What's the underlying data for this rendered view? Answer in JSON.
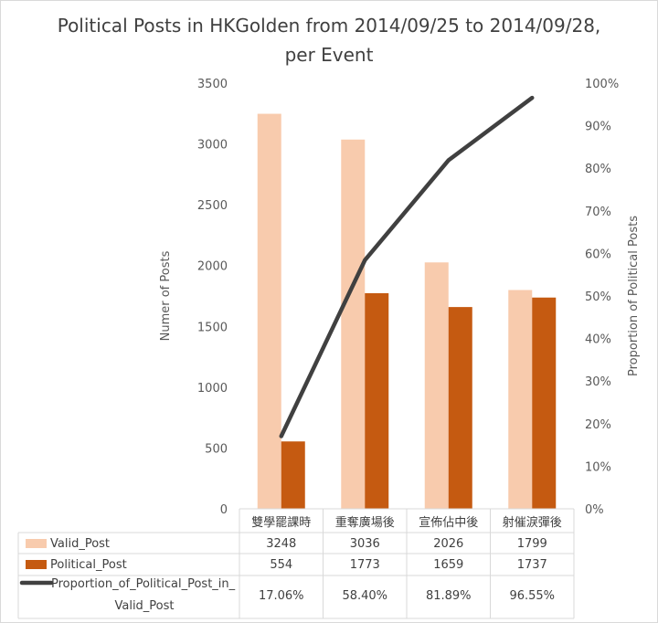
{
  "chart_data": {
    "type": "bar",
    "title_line1": "Political Posts in HKGolden from 2014/09/25 to 2014/09/28,",
    "title_line2": "per Event",
    "ylabel_left": "Numer of Posts",
    "ylabel_right": "Proportion  of Political Posts",
    "categories": [
      "雙學罷課時",
      "重奪廣場後",
      "宣佈佔中後",
      "射催淚彈後"
    ],
    "ylim_left": [
      0,
      3500
    ],
    "yticks_left": [
      "0",
      "500",
      "1000",
      "1500",
      "2000",
      "2500",
      "3000",
      "3500"
    ],
    "ylim_right": [
      0,
      1
    ],
    "yticks_right": [
      "0%",
      "10%",
      "20%",
      "30%",
      "40%",
      "50%",
      "60%",
      "70%",
      "80%",
      "90%",
      "100%"
    ],
    "series": [
      {
        "name": "Valid_Post",
        "kind": "bar",
        "axis": "left",
        "color": "#f8cbad",
        "values": [
          3248,
          3036,
          2026,
          1799
        ],
        "table_values": [
          "3248",
          "3036",
          "2026",
          "1799"
        ]
      },
      {
        "name": "Political_Post",
        "kind": "bar",
        "axis": "left",
        "color": "#c55a11",
        "values": [
          554,
          1773,
          1659,
          1737
        ],
        "table_values": [
          "554",
          "1773",
          "1659",
          "1737"
        ]
      },
      {
        "name": "Proportion_of_Political_Post_in_Valid_Post",
        "name_line1": "Proportion_of_Political_Post_in_",
        "name_line2": "Valid_Post",
        "kind": "line",
        "axis": "right",
        "color": "#404040",
        "values": [
          0.1706,
          0.584,
          0.8189,
          0.9655
        ],
        "table_values": [
          "17.06%",
          "58.40%",
          "81.89%",
          "96.55%"
        ]
      }
    ],
    "data_table": true
  }
}
